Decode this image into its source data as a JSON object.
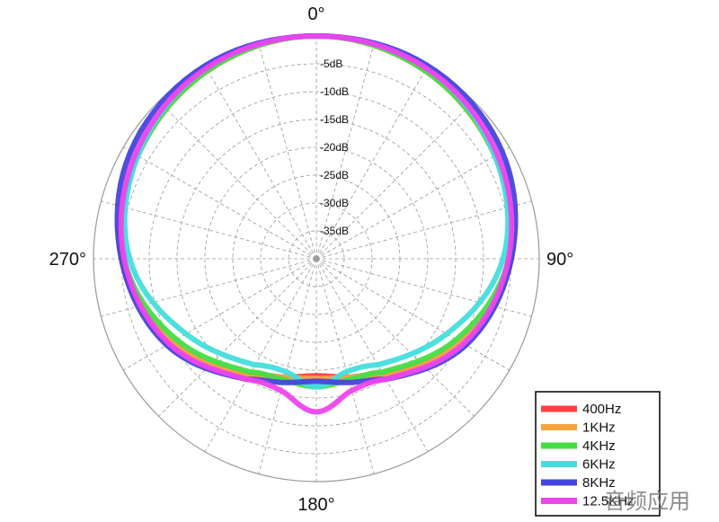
{
  "chart_data": {
    "type": "polar-line",
    "angle_unit": "degrees",
    "radius_unit": "dB",
    "r_range": [
      -40,
      0
    ],
    "angle_labels": [
      {
        "angle": 0,
        "text": "0°"
      },
      {
        "angle": 90,
        "text": "90°"
      },
      {
        "angle": 180,
        "text": "180°"
      },
      {
        "angle": 270,
        "text": "270°"
      }
    ],
    "radial_ticks": [
      {
        "value": -5,
        "text": "-5dB"
      },
      {
        "value": -10,
        "text": "-10dB"
      },
      {
        "value": -15,
        "text": "-15dB"
      },
      {
        "value": -20,
        "text": "-20dB"
      },
      {
        "value": -25,
        "text": "-25dB"
      },
      {
        "value": -30,
        "text": "-30dB"
      },
      {
        "value": -35,
        "text": "-35dB"
      }
    ],
    "grid": true,
    "legend_position": "bottom-right",
    "series": [
      {
        "name": "400Hz",
        "color": "#ff4040",
        "points": [
          [
            0,
            0
          ],
          [
            30,
            -1
          ],
          [
            60,
            -3
          ],
          [
            90,
            -5
          ],
          [
            120,
            -10
          ],
          [
            150,
            -16
          ],
          [
            165,
            -18
          ],
          [
            180,
            -19
          ],
          [
            195,
            -18
          ],
          [
            210,
            -16
          ],
          [
            240,
            -10
          ],
          [
            270,
            -5
          ],
          [
            300,
            -3
          ],
          [
            330,
            -1
          ]
        ]
      },
      {
        "name": "1KHz",
        "color": "#f5a442",
        "points": [
          [
            0,
            0
          ],
          [
            30,
            -1
          ],
          [
            60,
            -3
          ],
          [
            90,
            -5
          ],
          [
            120,
            -10
          ],
          [
            150,
            -16
          ],
          [
            165,
            -18
          ],
          [
            180,
            -18.5
          ],
          [
            195,
            -18
          ],
          [
            210,
            -16
          ],
          [
            240,
            -10
          ],
          [
            270,
            -5
          ],
          [
            300,
            -3
          ],
          [
            330,
            -1
          ]
        ]
      },
      {
        "name": "4KHz",
        "color": "#44dd44",
        "points": [
          [
            0,
            0
          ],
          [
            30,
            -1
          ],
          [
            60,
            -3
          ],
          [
            90,
            -5.5
          ],
          [
            120,
            -11
          ],
          [
            150,
            -16.5
          ],
          [
            165,
            -17.5
          ],
          [
            180,
            -17
          ],
          [
            195,
            -17.5
          ],
          [
            210,
            -16.5
          ],
          [
            240,
            -11
          ],
          [
            270,
            -5.5
          ],
          [
            300,
            -3
          ],
          [
            330,
            -1
          ]
        ]
      },
      {
        "name": "6KHz",
        "color": "#44dddd",
        "points": [
          [
            0,
            0
          ],
          [
            30,
            -0.5
          ],
          [
            60,
            -3
          ],
          [
            90,
            -6.5
          ],
          [
            120,
            -13
          ],
          [
            150,
            -18
          ],
          [
            165,
            -19
          ],
          [
            180,
            -17
          ],
          [
            195,
            -19
          ],
          [
            210,
            -18
          ],
          [
            240,
            -13
          ],
          [
            270,
            -6.5
          ],
          [
            300,
            -3
          ],
          [
            330,
            -0.5
          ]
        ]
      },
      {
        "name": "8KHz",
        "color": "#4444dd",
        "points": [
          [
            0,
            0
          ],
          [
            30,
            0
          ],
          [
            60,
            -1.5
          ],
          [
            90,
            -5
          ],
          [
            120,
            -9
          ],
          [
            150,
            -15
          ],
          [
            165,
            -17
          ],
          [
            180,
            -18
          ],
          [
            195,
            -17
          ],
          [
            210,
            -15
          ],
          [
            240,
            -9
          ],
          [
            270,
            -5
          ],
          [
            300,
            -1.5
          ],
          [
            330,
            0
          ]
        ]
      },
      {
        "name": "12.5KHz",
        "color": "#ee44ee",
        "points": [
          [
            0,
            0
          ],
          [
            30,
            -0.5
          ],
          [
            60,
            -2.5
          ],
          [
            90,
            -5.5
          ],
          [
            120,
            -9.5
          ],
          [
            150,
            -15
          ],
          [
            165,
            -15.5
          ],
          [
            180,
            -12.5
          ],
          [
            195,
            -15.5
          ],
          [
            210,
            -15
          ],
          [
            240,
            -9.5
          ],
          [
            270,
            -5.5
          ],
          [
            300,
            -2.5
          ],
          [
            330,
            -0.5
          ]
        ]
      }
    ]
  },
  "watermark_text": "音频应用"
}
